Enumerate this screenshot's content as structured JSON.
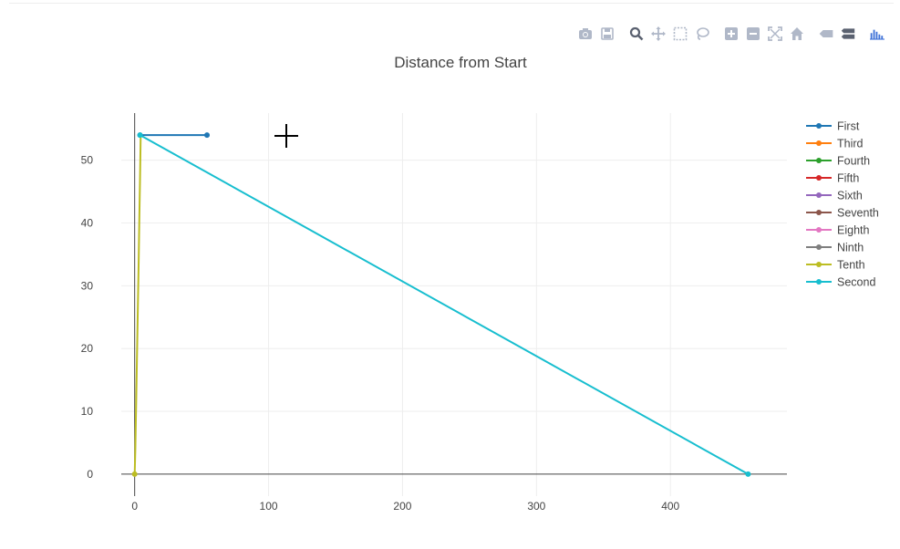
{
  "modebar": {
    "icons": [
      "camera-icon",
      "save-icon",
      "zoom-icon",
      "pan-icon",
      "box-select-icon",
      "lasso-icon",
      "zoom-in-icon",
      "zoom-out-icon",
      "autoscale-icon",
      "reset-axes-icon",
      "hover-closest-icon",
      "hover-compare-icon",
      "plotly-logo-icon"
    ],
    "icon_color": "#b0b8c8",
    "active_color": "#5a6170",
    "logo_color": "#3f72d8"
  },
  "chart_data": {
    "type": "line",
    "title": "Distance from Start",
    "xlabel": "",
    "ylabel": "",
    "xlim": [
      -10,
      487
    ],
    "ylim": [
      -3.5,
      57.5
    ],
    "x_ticks": [
      0,
      100,
      200,
      300,
      400
    ],
    "y_ticks": [
      0,
      10,
      20,
      30,
      40,
      50
    ],
    "grid": true,
    "legend_position": "right",
    "series": [
      {
        "name": "First",
        "color": "#1f77b4",
        "x": [
          4,
          54
        ],
        "y": [
          54,
          54
        ]
      },
      {
        "name": "Third",
        "color": "#ff7f0e",
        "x": [],
        "y": []
      },
      {
        "name": "Fourth",
        "color": "#2ca02c",
        "x": [],
        "y": []
      },
      {
        "name": "Fifth",
        "color": "#d62728",
        "x": [],
        "y": []
      },
      {
        "name": "Sixth",
        "color": "#9467bd",
        "x": [],
        "y": []
      },
      {
        "name": "Seventh",
        "color": "#8c564b",
        "x": [],
        "y": []
      },
      {
        "name": "Eighth",
        "color": "#e377c2",
        "x": [],
        "y": []
      },
      {
        "name": "Ninth",
        "color": "#7f7f7f",
        "x": [],
        "y": []
      },
      {
        "name": "Tenth",
        "color": "#bcbd22",
        "x": [
          0,
          0.5,
          1,
          1.5,
          2,
          2.5,
          3,
          3.5,
          4,
          4.5
        ],
        "y": [
          0,
          4,
          10,
          16,
          22,
          28,
          34,
          41,
          47,
          54
        ]
      },
      {
        "name": "Second",
        "color": "#17becf",
        "x": [
          4,
          458
        ],
        "y": [
          54,
          0
        ]
      }
    ]
  }
}
